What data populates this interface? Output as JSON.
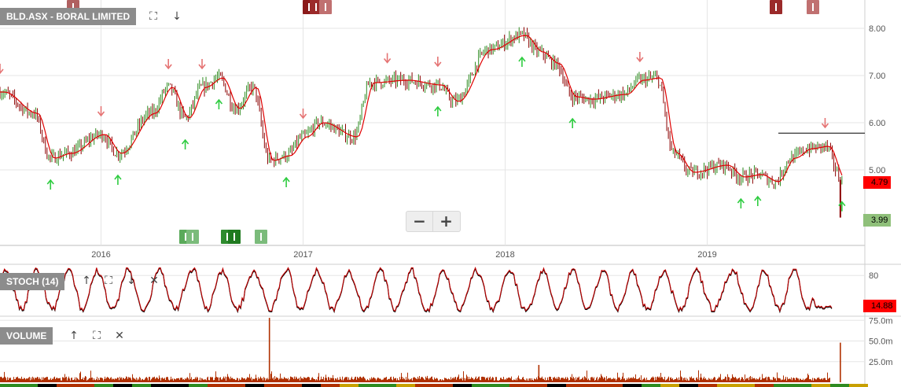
{
  "main_panel": {
    "title": "BLD.ASX - BORAL LIMITED",
    "last_price_label": "4.79",
    "target_price_label": "3.99",
    "resistance_price": 5.78
  },
  "stoch_panel": {
    "title": "STOCH (14)",
    "value_label": "14.88"
  },
  "volume_panel": {
    "title": "VOLUME"
  },
  "zoom": {
    "minus": "−",
    "plus": "+"
  },
  "icons": {
    "expand": "⛶",
    "arrow_down": "↓",
    "arrow_up": "↑",
    "close": "✕",
    "share": "⇱"
  },
  "colors": {
    "price_line": "#e00000",
    "candle_up": "#2e8b20",
    "candle_down": "#8b0000",
    "buy_arrow": "#2ecc40",
    "sell_arrow": "#e57373",
    "volume": "#b03000",
    "grid": "#e5e5e5",
    "last_price_bg": "#ff0000",
    "target_bg": "#8fc07a",
    "stoch_tag_bg": "#ff0000"
  },
  "chart_data": [
    {
      "type": "line",
      "panel": "price",
      "x_ticks": [
        "2016",
        "2017",
        "2018",
        "2019"
      ],
      "y_ticks": [
        "5.00",
        "6.00",
        "7.00",
        "8.00"
      ],
      "ylim": [
        3.4,
        8.6
      ],
      "series": [
        {
          "x": [
            "2015-07",
            "2015-09",
            "2015-10",
            "2015-11",
            "2016-01",
            "2016-02",
            "2016-04",
            "2016-05",
            "2016-06",
            "2016-07",
            "2016-08",
            "2016-09",
            "2016-10",
            "2016-11",
            "2016-12",
            "2017-01",
            "2017-02",
            "2017-04",
            "2017-05",
            "2017-07",
            "2017-09",
            "2017-10",
            "2017-12",
            "2018-02",
            "2018-03",
            "2018-04",
            "2018-05",
            "2018-06",
            "2018-08",
            "2018-09",
            "2018-10",
            "2018-11",
            "2018-12",
            "2019-02",
            "2019-03",
            "2019-04",
            "2019-05",
            "2019-06",
            "2019-07",
            "2019-08",
            "2019-09"
          ],
          "y": [
            6.65,
            6.2,
            5.25,
            5.35,
            5.75,
            5.35,
            6.2,
            6.75,
            6.1,
            6.75,
            6.95,
            6.3,
            6.75,
            5.2,
            5.3,
            5.7,
            6.0,
            5.7,
            6.85,
            6.9,
            6.8,
            6.45,
            7.55,
            7.85,
            7.5,
            7.25,
            6.55,
            6.5,
            6.6,
            6.9,
            6.95,
            5.35,
            4.95,
            5.1,
            4.85,
            4.9,
            4.75,
            5.25,
            5.45,
            5.5,
            4.79
          ]
        }
      ],
      "buy_signals": [
        "2015-10",
        "2016-02",
        "2016-06",
        "2016-08",
        "2016-12",
        "2017-09",
        "2018-02",
        "2018-05",
        "2019-03",
        "2019-04",
        "2019-09"
      ],
      "sell_signals": [
        "2015-07",
        "2016-01",
        "2016-05",
        "2016-07",
        "2017-01",
        "2017-06",
        "2017-09",
        "2018-09",
        "2019-08"
      ]
    },
    {
      "type": "line",
      "panel": "stochastic",
      "y_ticks": [
        "80"
      ],
      "ylim": [
        0,
        100
      ],
      "last_value": 14.88
    },
    {
      "type": "bar",
      "panel": "volume",
      "y_ticks": [
        "25.0m",
        "50.0m",
        "75.0m"
      ],
      "ylim": [
        0,
        80
      ],
      "spikes": [
        {
          "x": "2016-11",
          "value": 78
        },
        {
          "x": "2018-03",
          "value": 21
        },
        {
          "x": "2019-09",
          "value": 48
        }
      ]
    }
  ]
}
